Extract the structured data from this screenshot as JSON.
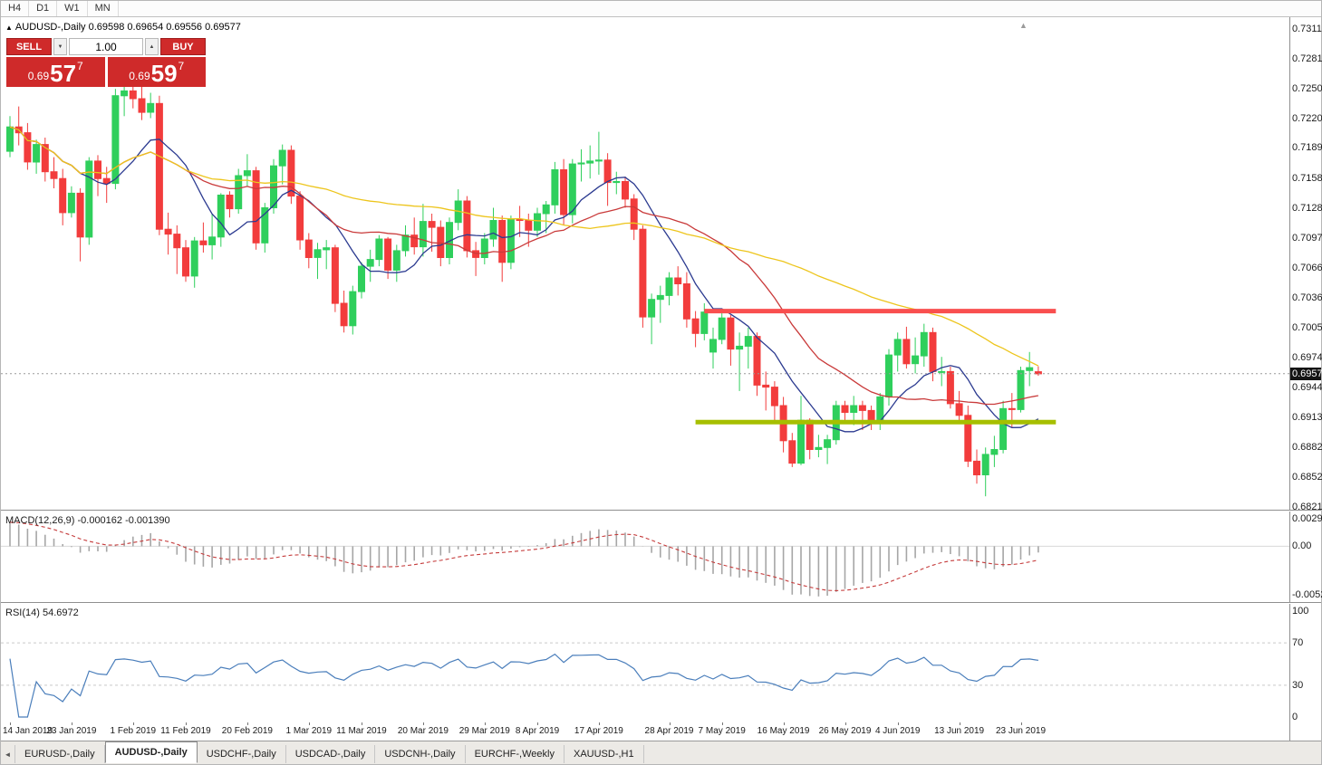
{
  "toolbar": {
    "timeframes": [
      "H4",
      "D1",
      "W1",
      "MN"
    ]
  },
  "window": {
    "title_symbol": "AUDUSD-,Daily",
    "title_ohlc": "0.69598 0.69654 0.69556 0.69577"
  },
  "icons": {
    "collapse": "▲",
    "spin_up": "▲",
    "spin_down": "▼",
    "tab_scroll_left": "◄",
    "shift_marker": "▲"
  },
  "trade_panel": {
    "sell_label": "SELL",
    "buy_label": "BUY",
    "volume": "1.00",
    "bid": {
      "prefix": "0.69",
      "big": "57",
      "sup": "7"
    },
    "ask": {
      "prefix": "0.69",
      "big": "59",
      "sup": "7"
    }
  },
  "main_scale": {
    "labels": [
      "0.73115",
      "0.72810",
      "0.72505",
      "0.72200",
      "0.71895",
      "0.71585",
      "0.71280",
      "0.70970",
      "0.70665",
      "0.70360",
      "0.70050",
      "0.69745",
      "0.69440",
      "0.69130",
      "0.68825",
      "0.68520",
      "0.68210"
    ],
    "current_price_label": "0.69577"
  },
  "macd_panel": {
    "name": "MACD(12,26,9)",
    "values": "-0.000162 -0.001390",
    "scale_labels": [
      "0.002984",
      "0.00",
      "-0.00525"
    ]
  },
  "rsi_panel": {
    "name": "RSI(14)",
    "value": "54.6972",
    "scale_labels": [
      "100",
      "70",
      "30",
      "0"
    ]
  },
  "date_axis": {
    "labels": [
      {
        "text": "14 Jan 2019",
        "index": 0
      },
      {
        "text": "23 Jan 2019",
        "index": 7
      },
      {
        "text": "1 Feb 2019",
        "index": 14
      },
      {
        "text": "11 Feb 2019",
        "index": 20
      },
      {
        "text": "20 Feb 2019",
        "index": 27
      },
      {
        "text": "1 Mar 2019",
        "index": 34
      },
      {
        "text": "11 Mar 2019",
        "index": 40
      },
      {
        "text": "20 Mar 2019",
        "index": 47
      },
      {
        "text": "29 Mar 2019",
        "index": 54
      },
      {
        "text": "8 Apr 2019",
        "index": 60
      },
      {
        "text": "17 Apr 2019",
        "index": 67
      },
      {
        "text": "28 Apr 2019",
        "index": 75
      },
      {
        "text": "7 May 2019",
        "index": 81
      },
      {
        "text": "16 May 2019",
        "index": 88
      },
      {
        "text": "26 May 2019",
        "index": 95
      },
      {
        "text": "4 Jun 2019",
        "index": 101
      },
      {
        "text": "13 Jun 2019",
        "index": 108
      },
      {
        "text": "23 Jun 2019",
        "index": 115
      }
    ]
  },
  "tabs": {
    "items": [
      "EURUSD-,Daily",
      "AUDUSD-,Daily",
      "USDCHF-,Daily",
      "USDCAD-,Daily",
      "USDCNH-,Daily",
      "EURCHF-,Weekly",
      "XAUUSD-,H1"
    ],
    "active_index": 1
  },
  "chart_data": {
    "type": "candlestick",
    "symbol": "AUDUSD-",
    "timeframe": "Daily",
    "y_range": [
      0.6821,
      0.73115
    ],
    "candles": [
      [
        0.7186,
        0.7222,
        0.718,
        0.7211
      ],
      [
        0.7211,
        0.7232,
        0.7192,
        0.7205
      ],
      [
        0.7205,
        0.7215,
        0.7167,
        0.7175
      ],
      [
        0.7175,
        0.7198,
        0.7163,
        0.7193
      ],
      [
        0.7193,
        0.72,
        0.7155,
        0.7165
      ],
      [
        0.7165,
        0.718,
        0.7148,
        0.7158
      ],
      [
        0.7158,
        0.7168,
        0.711,
        0.7123
      ],
      [
        0.7123,
        0.715,
        0.7118,
        0.7143
      ],
      [
        0.7143,
        0.7148,
        0.7073,
        0.7098
      ],
      [
        0.7098,
        0.718,
        0.709,
        0.7176
      ],
      [
        0.7176,
        0.7182,
        0.714,
        0.7158
      ],
      [
        0.7158,
        0.717,
        0.7133,
        0.7153
      ],
      [
        0.7153,
        0.725,
        0.7147,
        0.7243
      ],
      [
        0.7243,
        0.7258,
        0.7222,
        0.7248
      ],
      [
        0.7248,
        0.7255,
        0.723,
        0.724
      ],
      [
        0.724,
        0.7252,
        0.7218,
        0.7226
      ],
      [
        0.7226,
        0.7246,
        0.722,
        0.7235
      ],
      [
        0.7235,
        0.7243,
        0.71,
        0.7106
      ],
      [
        0.7106,
        0.7123,
        0.708,
        0.7101
      ],
      [
        0.7101,
        0.711,
        0.706,
        0.7087
      ],
      [
        0.7087,
        0.7095,
        0.7052,
        0.7058
      ],
      [
        0.7058,
        0.7098,
        0.7046,
        0.7094
      ],
      [
        0.7094,
        0.7113,
        0.7082,
        0.709
      ],
      [
        0.709,
        0.7122,
        0.7075,
        0.7098
      ],
      [
        0.7098,
        0.7143,
        0.7088,
        0.7141
      ],
      [
        0.7141,
        0.7145,
        0.7118,
        0.7127
      ],
      [
        0.7127,
        0.7168,
        0.7122,
        0.7161
      ],
      [
        0.7161,
        0.7183,
        0.715,
        0.7166
      ],
      [
        0.7166,
        0.717,
        0.7085,
        0.7092
      ],
      [
        0.7092,
        0.7133,
        0.7082,
        0.7128
      ],
      [
        0.7128,
        0.7178,
        0.7122,
        0.7171
      ],
      [
        0.7171,
        0.7193,
        0.7152,
        0.7187
      ],
      [
        0.7187,
        0.7192,
        0.7132,
        0.714
      ],
      [
        0.714,
        0.7145,
        0.7085,
        0.7095
      ],
      [
        0.7095,
        0.7102,
        0.7066,
        0.7077
      ],
      [
        0.7077,
        0.7092,
        0.7055,
        0.7085
      ],
      [
        0.7085,
        0.7095,
        0.7065,
        0.7087
      ],
      [
        0.7087,
        0.709,
        0.7021,
        0.703
      ],
      [
        0.703,
        0.7043,
        0.7,
        0.7007
      ],
      [
        0.7007,
        0.7048,
        0.6998,
        0.7042
      ],
      [
        0.7042,
        0.7072,
        0.7035,
        0.7068
      ],
      [
        0.7068,
        0.7085,
        0.7052,
        0.7075
      ],
      [
        0.7075,
        0.71,
        0.7068,
        0.7096
      ],
      [
        0.7096,
        0.7098,
        0.7055,
        0.7064
      ],
      [
        0.7064,
        0.709,
        0.7052,
        0.7084
      ],
      [
        0.7084,
        0.711,
        0.7078,
        0.71
      ],
      [
        0.71,
        0.7118,
        0.708,
        0.7088
      ],
      [
        0.7088,
        0.7132,
        0.7078,
        0.7114
      ],
      [
        0.7114,
        0.7122,
        0.7083,
        0.7108
      ],
      [
        0.7108,
        0.7115,
        0.7068,
        0.7077
      ],
      [
        0.7077,
        0.7118,
        0.707,
        0.7113
      ],
      [
        0.7113,
        0.7147,
        0.7105,
        0.7135
      ],
      [
        0.7135,
        0.714,
        0.7077,
        0.7084
      ],
      [
        0.7084,
        0.7093,
        0.7058,
        0.7077
      ],
      [
        0.7077,
        0.7102,
        0.707,
        0.7096
      ],
      [
        0.7096,
        0.7128,
        0.7088,
        0.7115
      ],
      [
        0.7115,
        0.712,
        0.7052,
        0.7072
      ],
      [
        0.7072,
        0.712,
        0.7065,
        0.7116
      ],
      [
        0.7116,
        0.713,
        0.7098,
        0.7115
      ],
      [
        0.7115,
        0.7122,
        0.7088,
        0.7105
      ],
      [
        0.7105,
        0.7128,
        0.7098,
        0.7122
      ],
      [
        0.7122,
        0.7135,
        0.7102,
        0.7131
      ],
      [
        0.7131,
        0.7175,
        0.7122,
        0.7167
      ],
      [
        0.7167,
        0.7178,
        0.711,
        0.7121
      ],
      [
        0.7121,
        0.7178,
        0.7112,
        0.7173
      ],
      [
        0.7173,
        0.7188,
        0.7155,
        0.7174
      ],
      [
        0.7174,
        0.7192,
        0.7158,
        0.7176
      ],
      [
        0.7176,
        0.7206,
        0.7162,
        0.7177
      ],
      [
        0.7177,
        0.7184,
        0.713,
        0.7154
      ],
      [
        0.7154,
        0.7165,
        0.7142,
        0.7155
      ],
      [
        0.7155,
        0.716,
        0.7128,
        0.7137
      ],
      [
        0.7137,
        0.7142,
        0.7095,
        0.7106
      ],
      [
        0.7106,
        0.711,
        0.7005,
        0.7016
      ],
      [
        0.7016,
        0.704,
        0.6988,
        0.7034
      ],
      [
        0.7034,
        0.7048,
        0.701,
        0.7038
      ],
      [
        0.7038,
        0.7062,
        0.7028,
        0.7056
      ],
      [
        0.7056,
        0.7068,
        0.7038,
        0.705
      ],
      [
        0.705,
        0.7062,
        0.7005,
        0.7014
      ],
      [
        0.7014,
        0.7022,
        0.6985,
        0.6999
      ],
      [
        0.6999,
        0.703,
        0.6992,
        0.7021
      ],
      [
        0.698,
        0.7005,
        0.6963,
        0.6993
      ],
      [
        0.6993,
        0.7022,
        0.6988,
        0.7015
      ],
      [
        0.7015,
        0.7018,
        0.6966,
        0.6983
      ],
      [
        0.6983,
        0.7,
        0.694,
        0.6986
      ],
      [
        0.6986,
        0.7005,
        0.6963,
        0.6996
      ],
      [
        0.6996,
        0.7,
        0.6935,
        0.6946
      ],
      [
        0.6946,
        0.696,
        0.692,
        0.6944
      ],
      [
        0.6944,
        0.695,
        0.691,
        0.6925
      ],
      [
        0.6925,
        0.6934,
        0.6877,
        0.6889
      ],
      [
        0.6889,
        0.6897,
        0.6862,
        0.6866
      ],
      [
        0.6866,
        0.6935,
        0.6864,
        0.691
      ],
      [
        0.691,
        0.6912,
        0.687,
        0.688
      ],
      [
        0.688,
        0.6895,
        0.6872,
        0.6882
      ],
      [
        0.6882,
        0.6895,
        0.6865,
        0.689
      ],
      [
        0.689,
        0.693,
        0.6885,
        0.6925
      ],
      [
        0.6925,
        0.693,
        0.691,
        0.6918
      ],
      [
        0.6918,
        0.6935,
        0.6905,
        0.6925
      ],
      [
        0.6925,
        0.693,
        0.69,
        0.692
      ],
      [
        0.692,
        0.6925,
        0.69,
        0.6908
      ],
      [
        0.6908,
        0.6938,
        0.69,
        0.6934
      ],
      [
        0.6934,
        0.6983,
        0.6925,
        0.6977
      ],
      [
        0.6977,
        0.7,
        0.696,
        0.6993
      ],
      [
        0.6993,
        0.7006,
        0.6963,
        0.6968
      ],
      [
        0.6968,
        0.6995,
        0.6958,
        0.6976
      ],
      [
        0.6976,
        0.7009,
        0.6965,
        0.7
      ],
      [
        0.7,
        0.7005,
        0.695,
        0.696
      ],
      [
        0.696,
        0.6975,
        0.6945,
        0.696
      ],
      [
        0.696,
        0.6965,
        0.6922,
        0.6927
      ],
      [
        0.6927,
        0.694,
        0.691,
        0.6915
      ],
      [
        0.6915,
        0.6925,
        0.6862,
        0.6868
      ],
      [
        0.6868,
        0.688,
        0.6845,
        0.6854
      ],
      [
        0.6854,
        0.6882,
        0.6832,
        0.6875
      ],
      [
        0.6875,
        0.6894,
        0.6862,
        0.688
      ],
      [
        0.688,
        0.693,
        0.6876,
        0.6922
      ],
      [
        0.6922,
        0.6938,
        0.6903,
        0.6921
      ],
      [
        0.6921,
        0.6965,
        0.6918,
        0.6961
      ],
      [
        0.6961,
        0.698,
        0.6945,
        0.6964
      ],
      [
        0.69598,
        0.69654,
        0.69556,
        0.69577
      ]
    ],
    "moving_averages": [
      {
        "period": 9,
        "color": "#2b3a90"
      },
      {
        "period": 21,
        "color": "#c93a3a"
      },
      {
        "period": 50,
        "color": "#edc51c"
      }
    ],
    "hlines": [
      {
        "price": 0.7022,
        "from_index": 79,
        "to_index": 119,
        "color": "#f94f4f",
        "width": 5
      },
      {
        "price": 0.6908,
        "from_index": 78,
        "to_index": 119,
        "color": "#a6bf00",
        "width": 5
      }
    ],
    "current_price": 0.69577,
    "colors": {
      "bull": "#2fcf5c",
      "bear": "#f23c3c",
      "macd_hist": "#a6a6a6",
      "macd_signal": "#c53b3b",
      "rsi": "#4a7ebb",
      "current_price_line": "#9a9a9a"
    },
    "macd": {
      "fast": 12,
      "slow": 26,
      "signal": 9,
      "range": [
        -0.00525,
        0.002984
      ]
    },
    "rsi": {
      "period": 14,
      "range": [
        0,
        100
      ],
      "levels": [
        70,
        30
      ]
    },
    "layout": {
      "x_start": 10,
      "x_step": 9.7,
      "candle_width": 7
    }
  }
}
